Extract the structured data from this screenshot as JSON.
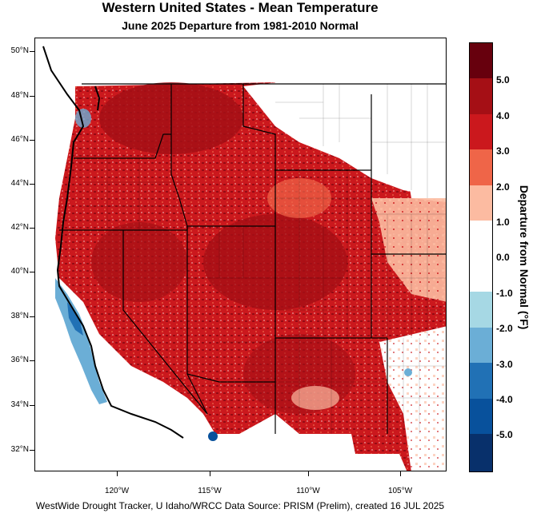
{
  "title": "Western United States - Mean Temperature",
  "subtitle": "June 2025  Departure from 1981-2010 Normal",
  "footer": "WestWide Drought Tracker, U Idaho/WRCC Data Source: PRISM (Prelim), created 16 JUL 2025",
  "latitude_labels": [
    "50°N",
    "48°N",
    "46°N",
    "44°N",
    "42°N",
    "40°N",
    "38°N",
    "36°N",
    "34°N",
    "32°N"
  ],
  "longitude_labels": [
    "120°W",
    "115°W",
    "110°W",
    "105°W"
  ],
  "colorbar": {
    "title": "Departure from Normal (°F)",
    "labels": [
      "5.0",
      "4.0",
      "3.0",
      "2.0",
      "1.0",
      "0.0",
      "-1.0",
      "-2.0",
      "-3.0",
      "-4.0",
      "-5.0"
    ],
    "colors": [
      "#67000d",
      "#a50f15",
      "#cb181d",
      "#ef6548",
      "#fcbba1",
      "#ffffff",
      "#ffffff",
      "#a6d8e4",
      "#6baed6",
      "#2171b5",
      "#08519c",
      "#08306b"
    ]
  },
  "colors": {
    "warm_dark": "#a50f15",
    "warm_mid": "#cb181d",
    "warm_light": "#ef6548",
    "warm_pale": "#fcbba1",
    "cool": "#6baed6",
    "cool_dark": "#08519c"
  }
}
